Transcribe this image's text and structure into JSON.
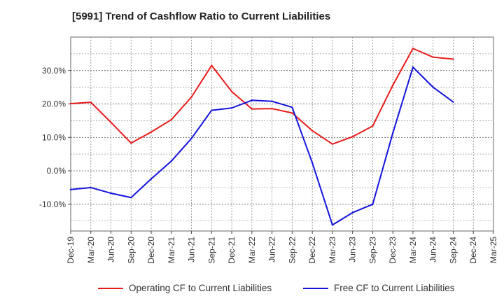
{
  "chart_data": {
    "type": "line",
    "title": "[5991]  Trend of Cashflow Ratio to Current Liabilities",
    "xlabel": "",
    "ylabel": "",
    "categories": [
      "Dec-19",
      "Mar-20",
      "Jun-20",
      "Sep-20",
      "Dec-20",
      "Mar-21",
      "Jun-21",
      "Sep-21",
      "Dec-21",
      "Mar-22",
      "Jun-22",
      "Sep-22",
      "Dec-22",
      "Mar-23",
      "Jun-23",
      "Sep-23",
      "Dec-23",
      "Mar-24",
      "Jun-24",
      "Sep-24",
      "Dec-24",
      "Mar-25"
    ],
    "ylim": [
      -18,
      40
    ],
    "yticks": [
      -10,
      0,
      10,
      20,
      30
    ],
    "ytick_labels": [
      "-10.0%",
      "0.0%",
      "10.0%",
      "20.0%",
      "30.0%"
    ],
    "grid": true,
    "legend_position": "bottom",
    "series": [
      {
        "name": "Operating CF to Current Liabilities",
        "color": "#e81c1c",
        "values": [
          20.1,
          20.5,
          14.5,
          8.3,
          11.6,
          15.3,
          22.1,
          31.5,
          23.7,
          18.5,
          18.6,
          17.3,
          12.0,
          8.0,
          10.2,
          13.4,
          25.6,
          36.6,
          34.0,
          33.4,
          null,
          null
        ]
      },
      {
        "name": "Free CF to Current Liabilities",
        "color": "#1414dc",
        "values": [
          -5.6,
          -5.0,
          -6.7,
          -8.0,
          -2.4,
          2.9,
          9.7,
          18.1,
          18.8,
          21.1,
          20.8,
          19.0,
          2.4,
          -16.2,
          -12.5,
          -10.0,
          11.3,
          31.0,
          25.0,
          20.6,
          null,
          null
        ]
      }
    ]
  }
}
